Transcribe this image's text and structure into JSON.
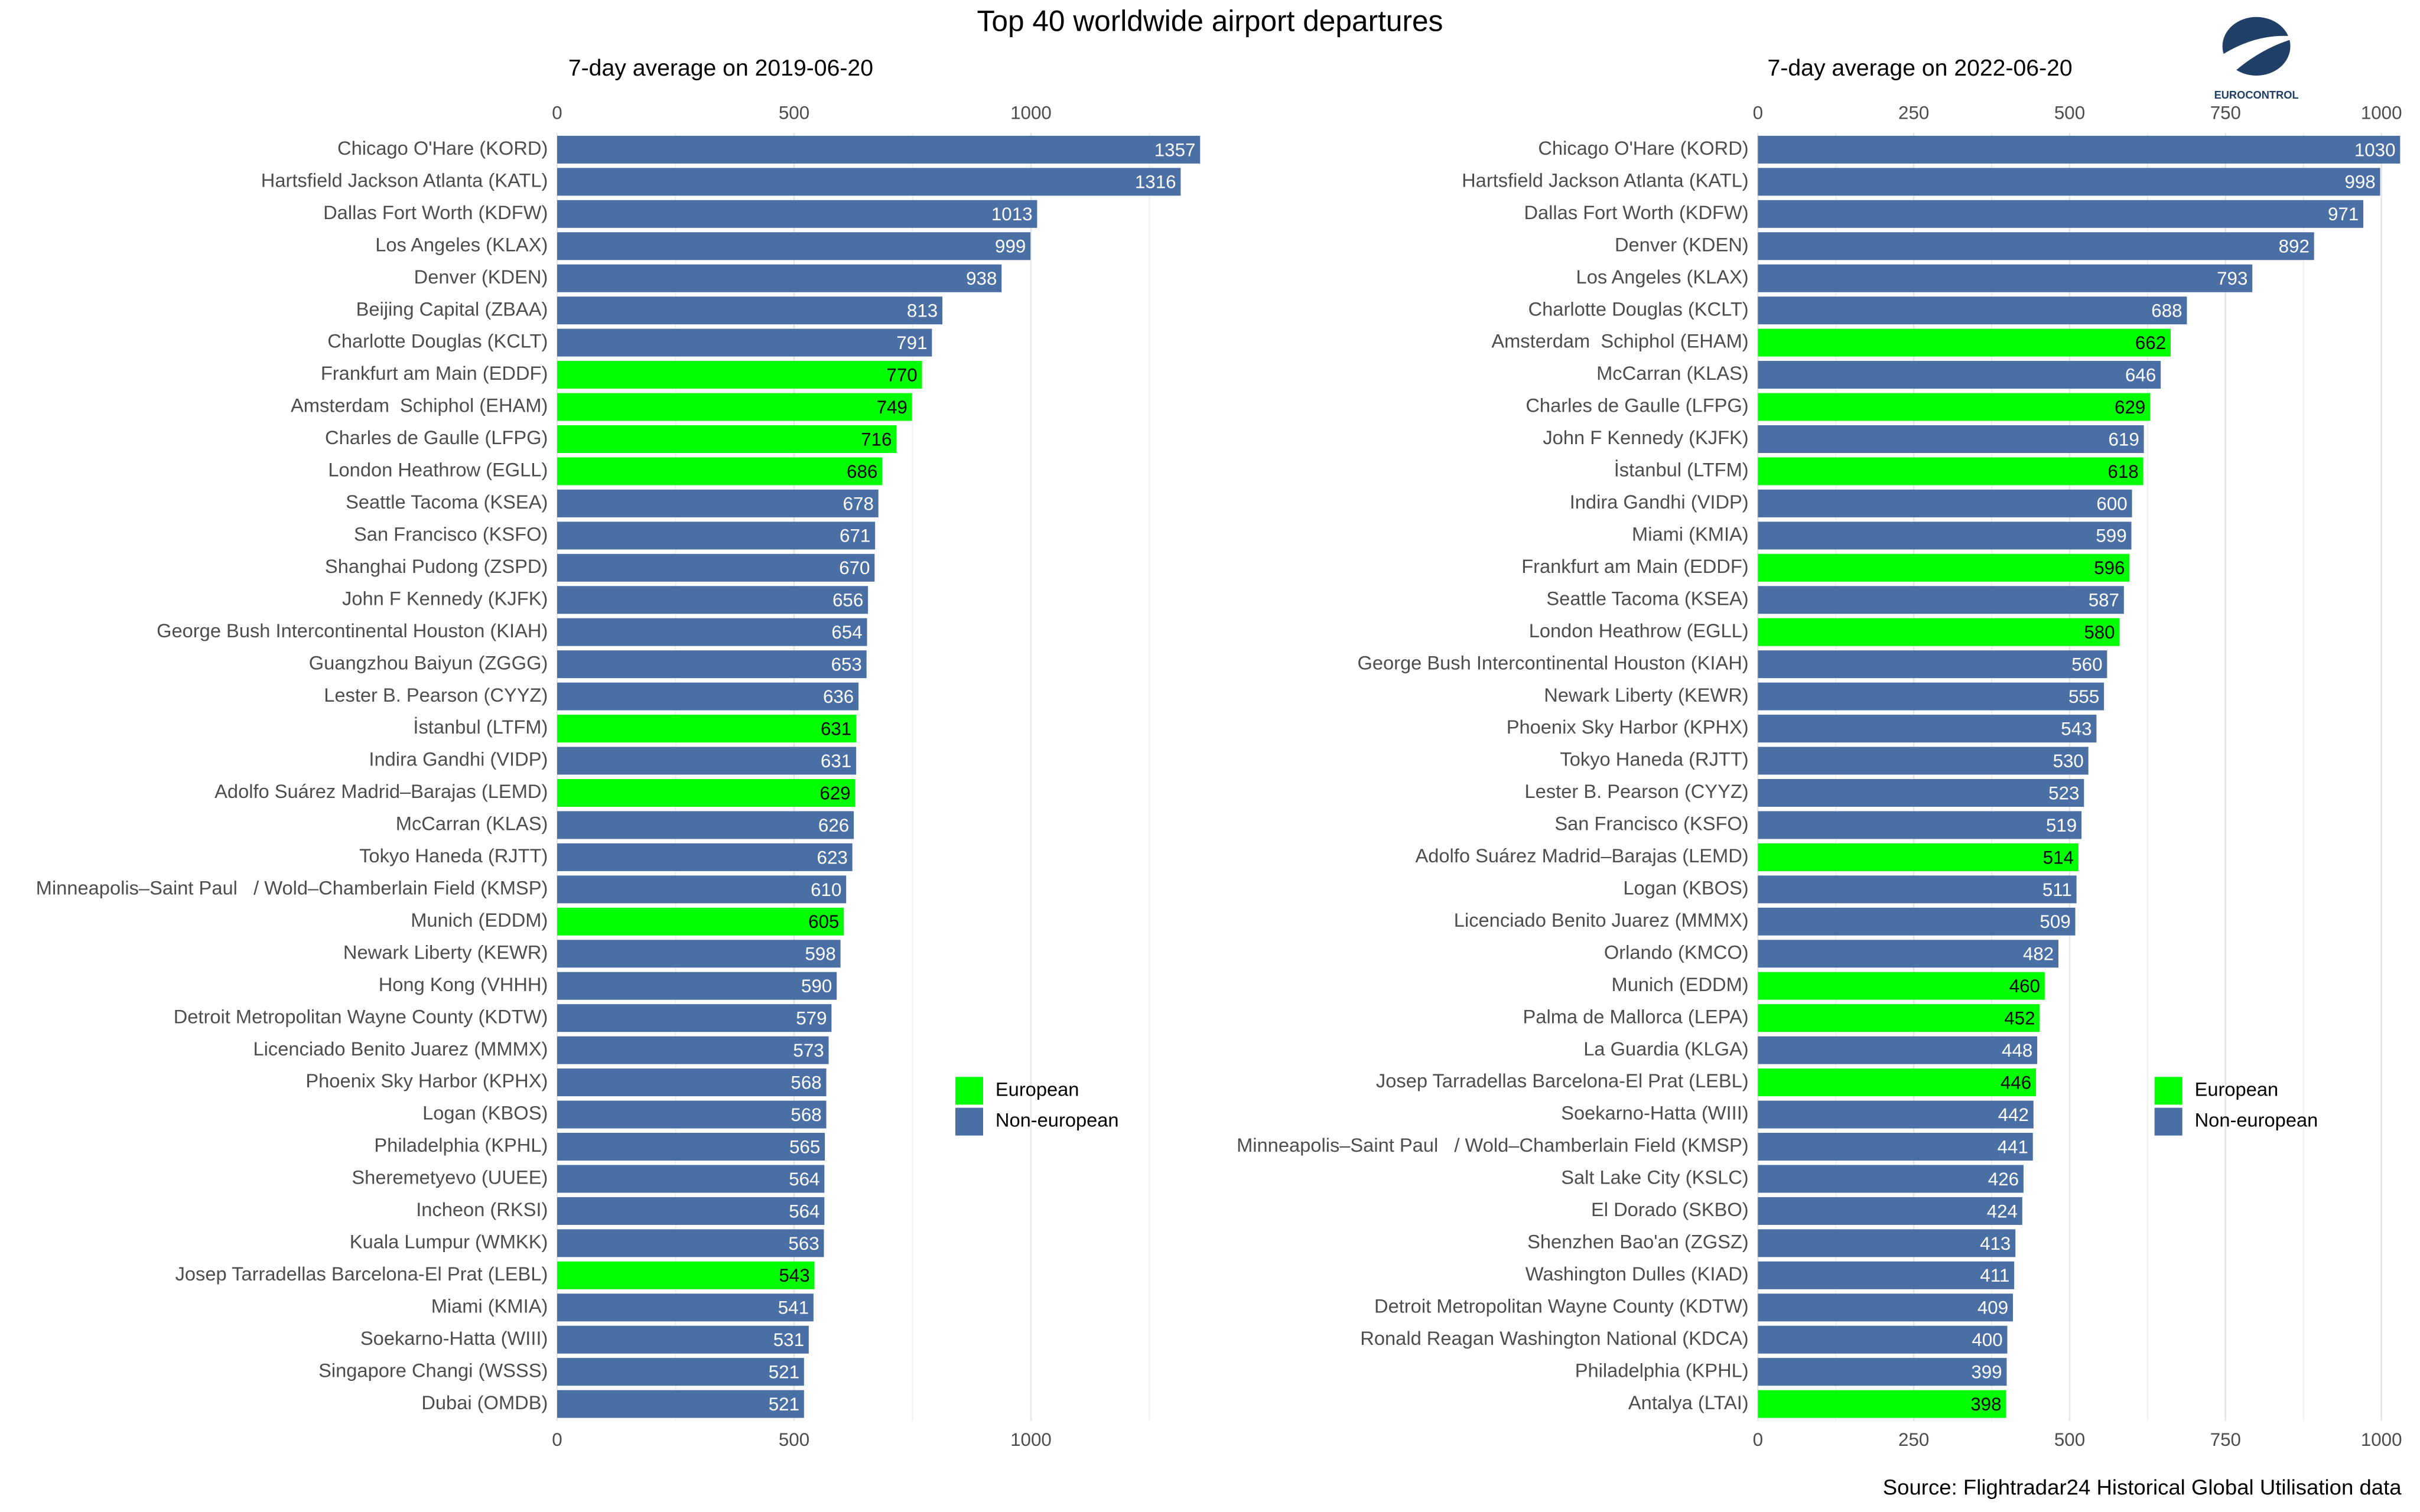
{
  "title": "Top 40 worldwide airport departures",
  "source": "Source: Flightradar24 Historical Global Utilisation data",
  "logo_text": "EUROCONTROL",
  "chart_data": [
    {
      "type": "bar",
      "orientation": "horizontal",
      "title": "7-day average on 2019-06-20",
      "categories": [
        "Chicago O'Hare (KORD)",
        "Hartsfield Jackson Atlanta (KATL)",
        "Dallas Fort Worth (KDFW)",
        "Los Angeles (KLAX)",
        "Denver (KDEN)",
        "Beijing Capital (ZBAA)",
        "Charlotte Douglas (KCLT)",
        "Frankfurt am Main (EDDF)",
        "Amsterdam  Schiphol (EHAM)",
        "Charles de Gaulle (LFPG)",
        "London Heathrow (EGLL)",
        "Seattle Tacoma (KSEA)",
        "San Francisco (KSFO)",
        "Shanghai Pudong (ZSPD)",
        "John F Kennedy (KJFK)",
        "George Bush Intercontinental Houston (KIAH)",
        "Guangzhou Baiyun (ZGGG)",
        "Lester B. Pearson (CYYZ)",
        "İstanbul (LTFM)",
        "Indira Gandhi (VIDP)",
        "Adolfo Suárez Madrid–Barajas (LEMD)",
        "McCarran (KLAS)",
        "Tokyo Haneda (RJTT)",
        "Minneapolis–Saint Paul   / Wold–Chamberlain Field (KMSP)",
        "Munich (EDDM)",
        "Newark Liberty (KEWR)",
        "Hong Kong (VHHH)",
        "Detroit Metropolitan Wayne County (KDTW)",
        "Licenciado Benito Juarez (MMMX)",
        "Phoenix Sky Harbor (KPHX)",
        "Logan (KBOS)",
        "Philadelphia (KPHL)",
        "Sheremetyevo (UUEE)",
        "Incheon (RKSI)",
        "Kuala Lumpur (WMKK)",
        "Josep Tarradellas Barcelona-El Prat (LEBL)",
        "Miami (KMIA)",
        "Soekarno-Hatta (WIII)",
        "Singapore Changi (WSSS)",
        "Dubai (OMDB)"
      ],
      "series": [
        {
          "name": "European",
          "color": "#00ff00",
          "values": [
            null,
            null,
            null,
            null,
            null,
            null,
            null,
            770,
            749,
            716,
            686,
            null,
            null,
            null,
            null,
            null,
            null,
            null,
            631,
            null,
            629,
            null,
            null,
            null,
            605,
            null,
            null,
            null,
            null,
            null,
            null,
            null,
            null,
            null,
            null,
            543,
            null,
            null,
            null,
            null
          ]
        },
        {
          "name": "Non-european",
          "color": "#4a6fa5",
          "values": [
            1357,
            1316,
            1013,
            999,
            938,
            813,
            791,
            null,
            null,
            null,
            null,
            678,
            671,
            670,
            656,
            654,
            653,
            636,
            null,
            631,
            null,
            626,
            623,
            610,
            null,
            598,
            590,
            579,
            573,
            568,
            568,
            565,
            564,
            564,
            563,
            null,
            541,
            531,
            521,
            521
          ]
        }
      ],
      "xlim": [
        0,
        1400
      ],
      "xticks": [
        0,
        500,
        1000
      ],
      "minor_xticks": [
        250,
        750,
        1250
      ],
      "grid": true
    },
    {
      "type": "bar",
      "orientation": "horizontal",
      "title": "7-day average on 2022-06-20",
      "categories": [
        "Chicago O'Hare (KORD)",
        "Hartsfield Jackson Atlanta (KATL)",
        "Dallas Fort Worth (KDFW)",
        "Denver (KDEN)",
        "Los Angeles (KLAX)",
        "Charlotte Douglas (KCLT)",
        "Amsterdam  Schiphol (EHAM)",
        "McCarran (KLAS)",
        "Charles de Gaulle (LFPG)",
        "John F Kennedy (KJFK)",
        "İstanbul (LTFM)",
        "Indira Gandhi (VIDP)",
        "Miami (KMIA)",
        "Frankfurt am Main (EDDF)",
        "Seattle Tacoma (KSEA)",
        "London Heathrow (EGLL)",
        "George Bush Intercontinental Houston (KIAH)",
        "Newark Liberty (KEWR)",
        "Phoenix Sky Harbor (KPHX)",
        "Tokyo Haneda (RJTT)",
        "Lester B. Pearson (CYYZ)",
        "San Francisco (KSFO)",
        "Adolfo Suárez Madrid–Barajas (LEMD)",
        "Logan (KBOS)",
        "Licenciado Benito Juarez (MMMX)",
        "Orlando (KMCO)",
        "Munich (EDDM)",
        "Palma de Mallorca (LEPA)",
        "La Guardia (KLGA)",
        "Josep Tarradellas Barcelona-El Prat (LEBL)",
        "Soekarno-Hatta (WIII)",
        "Minneapolis–Saint Paul   / Wold–Chamberlain Field (KMSP)",
        "Salt Lake City (KSLC)",
        "El Dorado (SKBO)",
        "Shenzhen Bao'an (ZGSZ)",
        "Washington Dulles (KIAD)",
        "Detroit Metropolitan Wayne County (KDTW)",
        "Ronald Reagan Washington National (KDCA)",
        "Philadelphia (KPHL)",
        "Antalya (LTAI)"
      ],
      "series": [
        {
          "name": "European",
          "color": "#00ff00",
          "values": [
            null,
            null,
            null,
            null,
            null,
            null,
            662,
            null,
            629,
            null,
            618,
            null,
            null,
            596,
            null,
            580,
            null,
            null,
            null,
            null,
            null,
            null,
            514,
            null,
            null,
            null,
            460,
            452,
            null,
            446,
            null,
            null,
            null,
            null,
            null,
            null,
            null,
            null,
            null,
            398
          ]
        },
        {
          "name": "Non-european",
          "color": "#4a6fa5",
          "values": [
            1030,
            998,
            971,
            892,
            793,
            688,
            null,
            646,
            null,
            619,
            null,
            600,
            599,
            null,
            587,
            null,
            560,
            555,
            543,
            530,
            523,
            519,
            null,
            511,
            509,
            482,
            null,
            null,
            448,
            null,
            442,
            441,
            426,
            424,
            413,
            411,
            409,
            400,
            399,
            null
          ]
        }
      ],
      "xlim": [
        0,
        1040
      ],
      "xticks": [
        0,
        250,
        500,
        750,
        1000
      ],
      "minor_xticks": [
        125,
        375,
        625,
        875
      ],
      "grid": true
    }
  ]
}
